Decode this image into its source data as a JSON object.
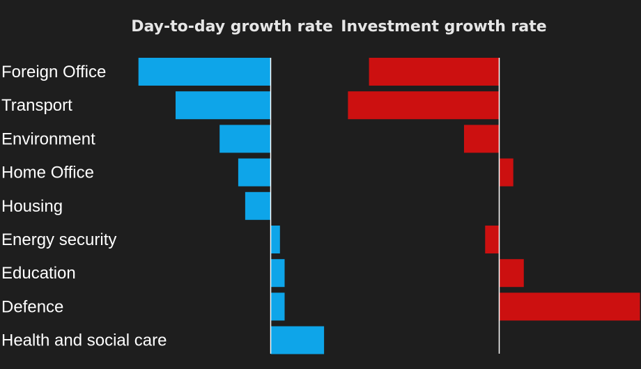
{
  "chart_data": {
    "type": "bar",
    "orientation": "horizontal",
    "categories": [
      "Foreign Office",
      "Transport",
      "Environment",
      "Home Office",
      "Housing",
      "Energy security",
      "Education",
      "Defence",
      "Health and social care"
    ],
    "series": [
      {
        "name": "Day-to-day growth rate",
        "color": "#0ea5e9",
        "values": [
          -5.7,
          -4.1,
          -2.2,
          -1.4,
          -1.1,
          0.4,
          0.6,
          0.6,
          2.3
        ]
      },
      {
        "name": "Investment growth rate",
        "color": "#cc1010",
        "values": [
          -3.7,
          -4.3,
          -1.0,
          0.4,
          0,
          -0.4,
          0.7,
          4.0,
          null
        ]
      }
    ],
    "title": "",
    "grid": false,
    "legend": "none"
  }
}
